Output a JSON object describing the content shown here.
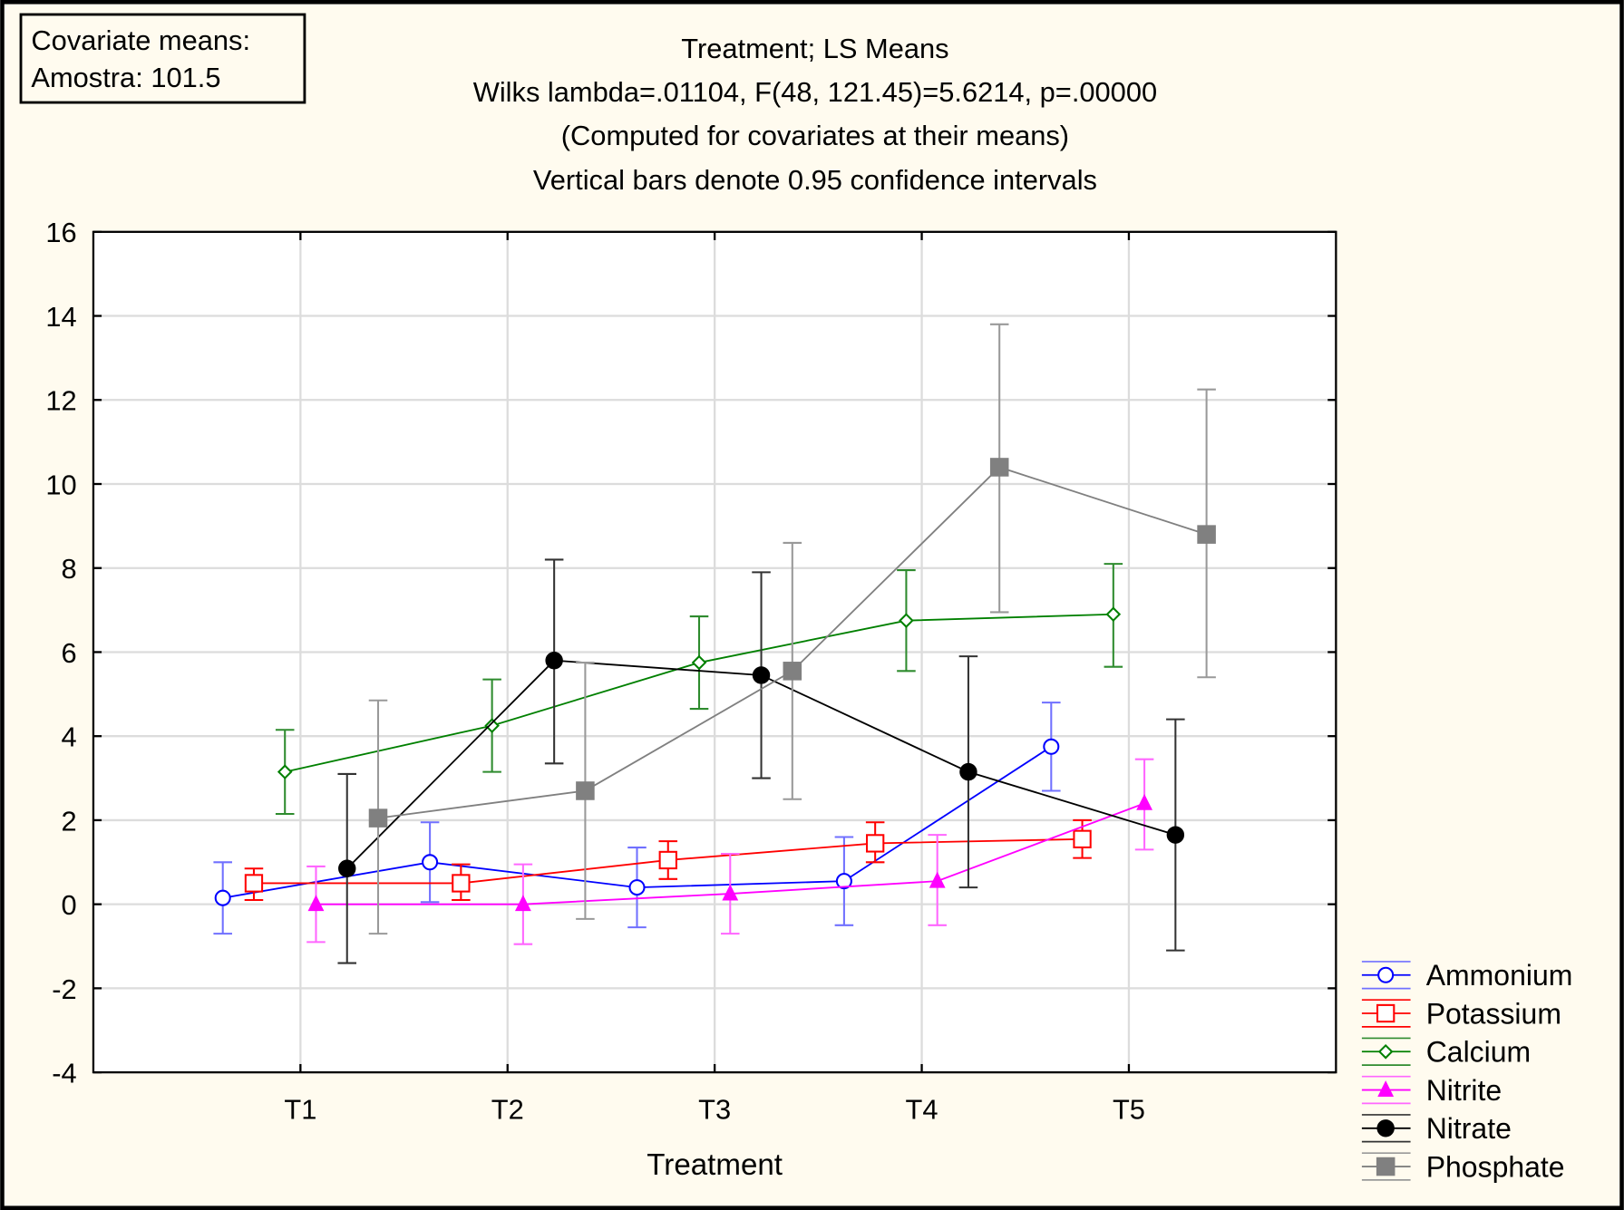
{
  "chart_data": {
    "type": "line",
    "title_lines": [
      "Treatment; LS Means",
      "Wilks lambda=.01104, F(48, 121.45)=5.6214, p=.00000",
      "(Computed for covariates at their means)",
      "Vertical bars denote 0.95 confidence intervals"
    ],
    "covariate_box": [
      "Covariate means:",
      "Amostra: 101.5"
    ],
    "xlabel": "Treatment",
    "ylabel": "",
    "categories": [
      "T1",
      "T2",
      "T3",
      "T4",
      "T5"
    ],
    "ylim": [
      -4,
      16
    ],
    "yticks": [
      -4,
      -2,
      0,
      2,
      4,
      6,
      8,
      10,
      12,
      14,
      16
    ],
    "grid": true,
    "legend_position": "bottom-right outside",
    "series": [
      {
        "name": "Ammonium",
        "color": "#0000ff",
        "bar_color": "#7070ff",
        "marker": "open-circle",
        "offset": -0.375,
        "values": [
          0.15,
          1.0,
          0.4,
          0.55,
          3.75
        ],
        "lower": [
          -0.7,
          0.05,
          -0.55,
          -0.5,
          2.7
        ],
        "upper": [
          1.0,
          1.95,
          1.35,
          1.6,
          4.8
        ]
      },
      {
        "name": "Potassium",
        "color": "#ff0000",
        "bar_color": "#ff0000",
        "marker": "open-square",
        "offset": -0.225,
        "values": [
          0.5,
          0.5,
          1.05,
          1.45,
          1.55
        ],
        "lower": [
          0.1,
          0.1,
          0.6,
          1.0,
          1.1
        ],
        "upper": [
          0.85,
          0.95,
          1.5,
          1.95,
          2.0
        ]
      },
      {
        "name": "Calcium",
        "color": "#008000",
        "bar_color": "#2e8b2e",
        "marker": "open-diamond",
        "offset": -0.075,
        "values": [
          3.15,
          4.25,
          5.75,
          6.75,
          6.9
        ],
        "lower": [
          2.15,
          3.15,
          4.65,
          5.55,
          5.65
        ],
        "upper": [
          4.15,
          5.35,
          6.85,
          7.95,
          8.1
        ]
      },
      {
        "name": "Nitrite",
        "color": "#ff00ff",
        "bar_color": "#ff66ff",
        "marker": "filled-triangle",
        "offset": 0.075,
        "values": [
          0.0,
          0.0,
          0.25,
          0.55,
          2.4
        ],
        "lower": [
          -0.9,
          -0.95,
          -0.7,
          -0.5,
          1.3
        ],
        "upper": [
          0.9,
          0.95,
          1.2,
          1.65,
          3.45
        ]
      },
      {
        "name": "Nitrate",
        "color": "#000000",
        "bar_color": "#333333",
        "marker": "filled-circle",
        "offset": 0.225,
        "values": [
          0.85,
          5.8,
          5.45,
          3.15,
          1.65
        ],
        "lower": [
          -1.4,
          3.35,
          3.0,
          0.4,
          -1.1
        ],
        "upper": [
          3.1,
          8.2,
          7.9,
          5.9,
          4.4
        ]
      },
      {
        "name": "Phosphate",
        "color": "#808080",
        "bar_color": "#999999",
        "marker": "filled-square",
        "offset": 0.375,
        "values": [
          2.05,
          2.7,
          5.55,
          10.4,
          8.8
        ],
        "lower": [
          -0.7,
          -0.35,
          2.5,
          6.95,
          5.4
        ],
        "upper": [
          4.85,
          5.75,
          8.6,
          13.8,
          12.25
        ]
      }
    ]
  }
}
